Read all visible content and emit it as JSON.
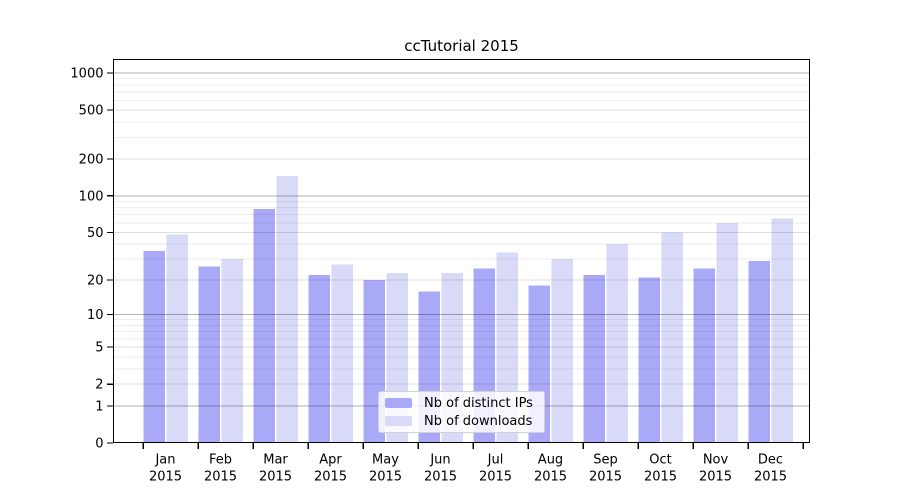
{
  "chart_data": {
    "type": "bar",
    "title": "ccTutorial 2015",
    "categories": [
      "Jan",
      "Feb",
      "Mar",
      "Apr",
      "May",
      "Jun",
      "Jul",
      "Aug",
      "Sep",
      "Oct",
      "Nov",
      "Dec"
    ],
    "category_year": "2015",
    "series": [
      {
        "name": "Nb of distinct IPs",
        "color": "#a9a9f8",
        "values": [
          35,
          26,
          78,
          22,
          20,
          16,
          25,
          18,
          22,
          21,
          25,
          29
        ]
      },
      {
        "name": "Nb of downloads",
        "color": "#d9d9f8",
        "values": [
          48,
          30,
          145,
          27,
          23,
          23,
          34,
          30,
          40,
          50,
          60,
          65
        ]
      }
    ],
    "xlabel": "",
    "ylabel": "",
    "yscale": "log10(value+1)",
    "yticks": [
      0,
      1,
      2,
      5,
      10,
      20,
      50,
      100,
      200,
      500,
      1000
    ],
    "ylim": [
      0,
      1100
    ],
    "grid": "horizontal",
    "legend_position": "bottom-center",
    "colors": {
      "axis": "#000000",
      "major_grid": "rgba(0,0,0,0.30)",
      "labeled_grid": "rgba(0,0,0,0.13)",
      "minor_grid": "rgba(0,0,0,0.065)",
      "tick_text": "#000000",
      "background": "#ffffff"
    }
  }
}
